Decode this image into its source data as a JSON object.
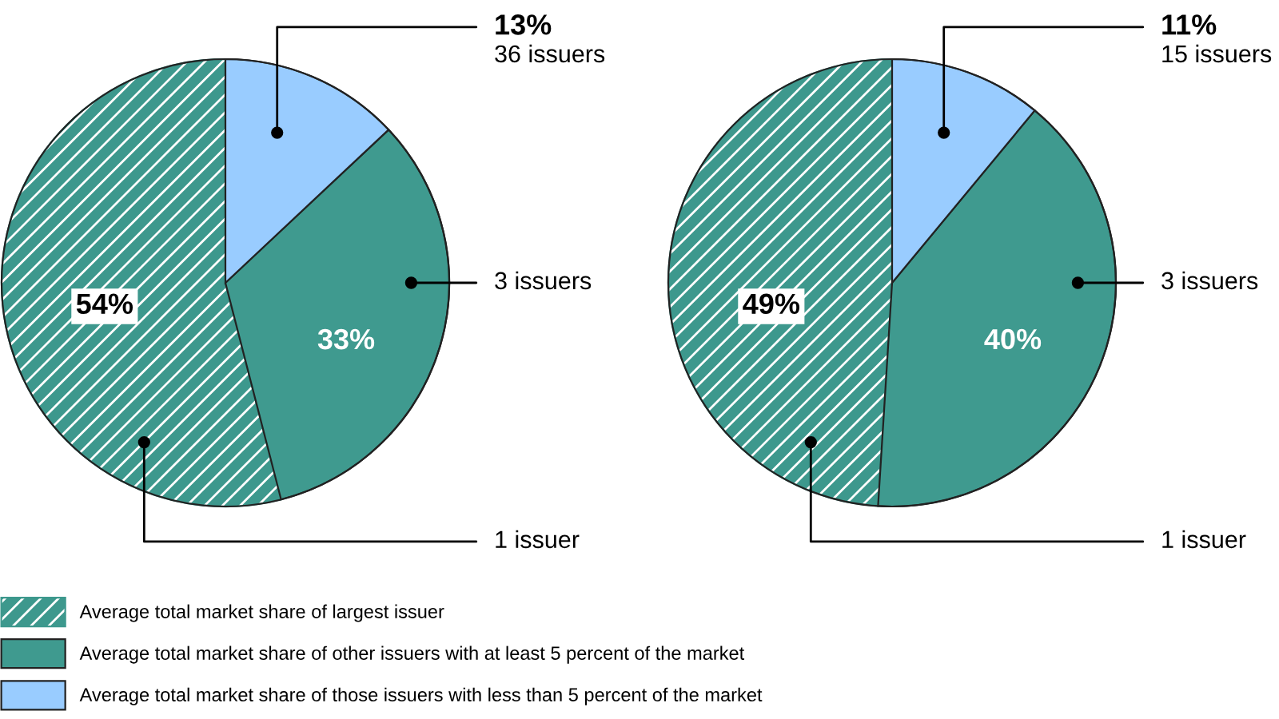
{
  "chart_data": [
    {
      "type": "pie",
      "categories": [
        null,
        null,
        null
      ],
      "values": [
        54,
        33,
        13
      ],
      "colors": [
        "#3d988d",
        "#3f9a8f",
        "#99ccff"
      ],
      "value_labels": [
        "54%",
        "33%",
        "13%"
      ],
      "annotations": [
        "1 issuer",
        "3 issuers",
        "36 issuers"
      ]
    },
    {
      "type": "pie",
      "categories": [
        "Average total market share of largest issuer",
        "Average total market share of other issuers with at least 5 percent of the market",
        "Average total market share of those issuers with less than 5 percent of the market"
      ],
      "values": [
        49,
        40,
        11
      ],
      "colors": [
        "#3d988d",
        "#3f9a8f",
        "#99ccff"
      ],
      "value_labels": [
        "49%",
        "40%",
        "11%"
      ],
      "annotations": [
        "1 issuer",
        "3 issuers",
        "15 issuers"
      ],
      "legend": "bottom left"
    }
  ]
}
